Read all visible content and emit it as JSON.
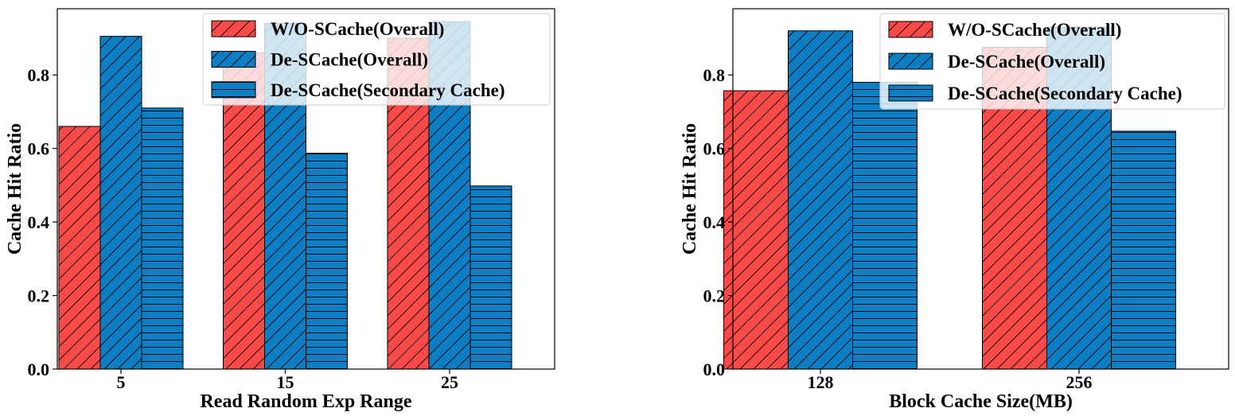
{
  "colors": {
    "w_o_scache": "#f94a4a",
    "de_scache": "#0d7ec4",
    "edge": "#000000",
    "hatch": "#000000"
  },
  "chart_data": [
    {
      "type": "bar",
      "title": "",
      "xlabel": "Read Random Exp Range",
      "ylabel": "Cache Hit Ratio",
      "categories": [
        "5",
        "15",
        "25"
      ],
      "ylim": [
        0,
        0.98
      ],
      "yticks": [
        0.0,
        0.2,
        0.4,
        0.6,
        0.8
      ],
      "ytick_labels": [
        "0.0",
        "0.2",
        "0.4",
        "0.6",
        "0.8"
      ],
      "legend_position": "top-right",
      "series": [
        {
          "name": "W/O-SCache(Overall)",
          "values": [
            0.66,
            0.86,
            0.9
          ],
          "color": "#f94a4a",
          "hatch": "diagonal"
        },
        {
          "name": "De-SCache(Overall)",
          "values": [
            0.905,
            0.94,
            0.945
          ],
          "color": "#0d7ec4",
          "hatch": "diagonal"
        },
        {
          "name": "De-SCache(Secondary Cache)",
          "values": [
            0.71,
            0.587,
            0.498
          ],
          "color": "#0d7ec4",
          "hatch": "horizontal"
        }
      ]
    },
    {
      "type": "bar",
      "title": "",
      "xlabel": "Block Cache Size(MB)",
      "ylabel": "Cache Hit Ratio",
      "categories": [
        "128",
        "256"
      ],
      "ylim": [
        0,
        0.98
      ],
      "yticks": [
        0.0,
        0.2,
        0.4,
        0.6,
        0.8
      ],
      "ytick_labels": [
        "0.0",
        "0.2",
        "0.4",
        "0.6",
        "0.8"
      ],
      "legend_position": "top-right",
      "series": [
        {
          "name": "W/O-SCache(Overall)",
          "values": [
            0.757,
            0.875
          ],
          "color": "#f94a4a",
          "hatch": "diagonal"
        },
        {
          "name": "De-SCache(Overall)",
          "values": [
            0.92,
            0.93
          ],
          "color": "#0d7ec4",
          "hatch": "diagonal"
        },
        {
          "name": "De-SCache(Secondary Cache)",
          "values": [
            0.78,
            0.647
          ],
          "color": "#0d7ec4",
          "hatch": "horizontal"
        }
      ]
    }
  ]
}
